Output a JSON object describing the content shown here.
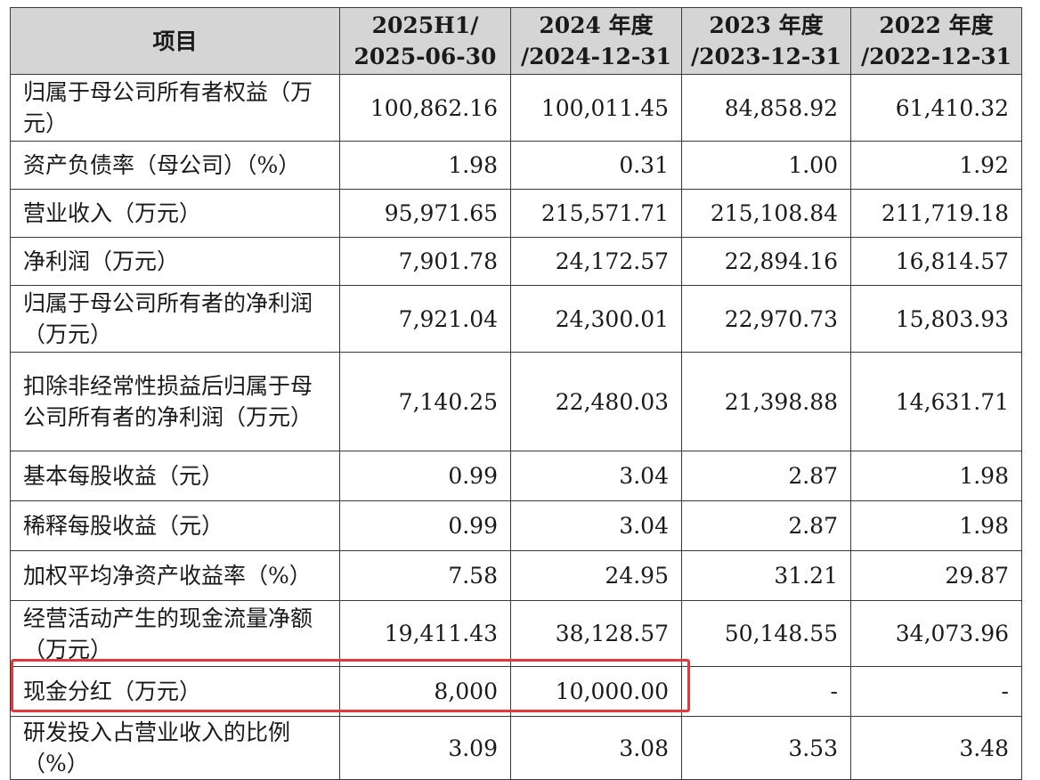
{
  "table": {
    "headers": [
      {
        "line1": "项目",
        "line2": ""
      },
      {
        "line1": "2025H1/",
        "line2": "2025-06-30"
      },
      {
        "line1": "2024 年度",
        "line2": "/2024-12-31"
      },
      {
        "line1": "2023 年度",
        "line2": "/2023-12-31"
      },
      {
        "line1": "2022 年度",
        "line2": "/2022-12-31"
      }
    ],
    "rows": [
      {
        "label": "归属于母公司所有者权益（万元）",
        "values": [
          "100,862.16",
          "100,011.45",
          "84,858.92",
          "61,410.32"
        ]
      },
      {
        "label": "资产负债率（母公司）（%）",
        "values": [
          "1.98",
          "0.31",
          "1.00",
          "1.92"
        ]
      },
      {
        "label": "营业收入（万元）",
        "values": [
          "95,971.65",
          "215,571.71",
          "215,108.84",
          "211,719.18"
        ]
      },
      {
        "label": "净利润（万元）",
        "values": [
          "7,901.78",
          "24,172.57",
          "22,894.16",
          "16,814.57"
        ]
      },
      {
        "label": "归属于母公司所有者的净利润（万元）",
        "values": [
          "7,921.04",
          "24,300.01",
          "22,970.73",
          "15,803.93"
        ]
      },
      {
        "label": "扣除非经常性损益后归属于母公司所有者的净利润（万元）",
        "values": [
          "7,140.25",
          "22,480.03",
          "21,398.88",
          "14,631.71"
        ]
      },
      {
        "label": "基本每股收益（元）",
        "values": [
          "0.99",
          "3.04",
          "2.87",
          "1.98"
        ]
      },
      {
        "label": "稀释每股收益（元）",
        "values": [
          "0.99",
          "3.04",
          "2.87",
          "1.98"
        ]
      },
      {
        "label": "加权平均净资产收益率（%）",
        "values": [
          "7.58",
          "24.95",
          "31.21",
          "29.87"
        ]
      },
      {
        "label": "经营活动产生的现金流量净额（万元）",
        "values": [
          "19,411.43",
          "38,128.57",
          "50,148.55",
          "34,073.96"
        ]
      },
      {
        "label": "现金分红（万元）",
        "values": [
          "8,000",
          "10,000.00",
          "-",
          "-"
        ]
      },
      {
        "label": "研发投入占营业收入的比例（%）",
        "values": [
          "3.09",
          "3.08",
          "3.53",
          "3.48"
        ]
      }
    ]
  },
  "colors": {
    "header_bg": "#d5d5d5",
    "highlight_border": "#e0393e"
  }
}
